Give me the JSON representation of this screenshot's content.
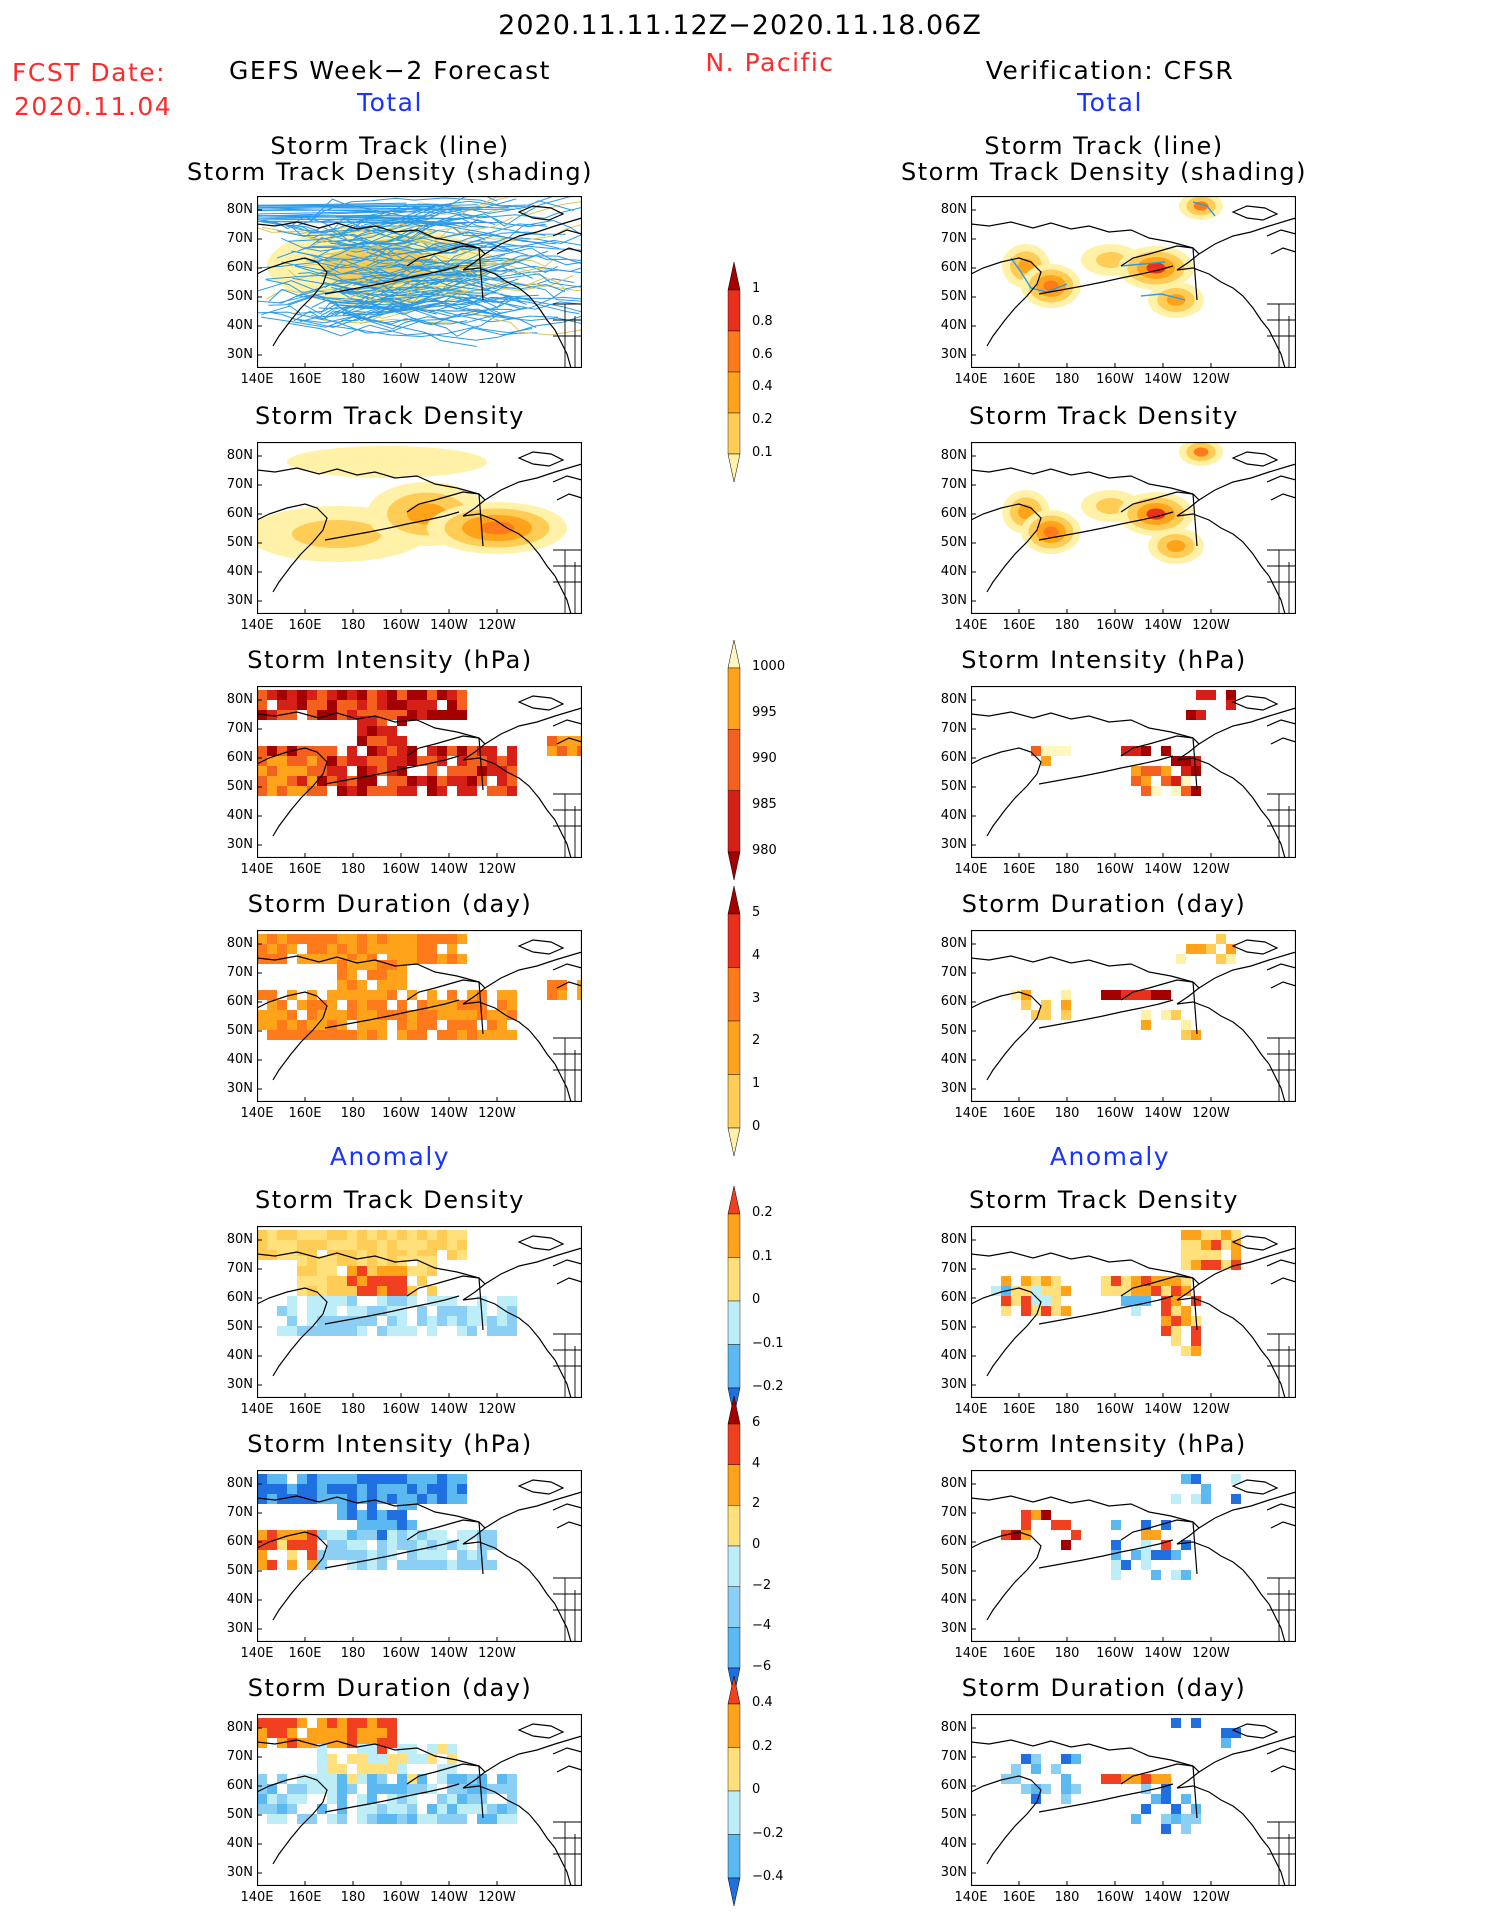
{
  "header": {
    "date_range": "2020.11.11.12Z−2020.11.18.06Z",
    "region": "N. Pacific",
    "fcst_label": "FCST Date:",
    "fcst_date": "2020.11.04",
    "left_title": "GEFS Week−2 Forecast",
    "right_title": "Verification: CFSR",
    "total_label": "Total",
    "anomaly_label": "Anomaly"
  },
  "panel_titles": {
    "track_line": "Storm Track (line)",
    "track_shading": "Storm Track Density (shading)",
    "density": "Storm Track Density",
    "intensity": "Storm Intensity (hPa)",
    "duration": "Storm Duration (day)"
  },
  "map_axes": {
    "lat_labels": [
      "80N",
      "70N",
      "60N",
      "50N",
      "40N",
      "30N"
    ],
    "lon_labels": [
      "140E",
      "160E",
      "180",
      "160W",
      "140W",
      "120W"
    ]
  },
  "colorbars": {
    "density_total": {
      "levels": [
        "1",
        "0.8",
        "0.6",
        "0.4",
        "0.2",
        "0.1"
      ],
      "colors": [
        "#a50000",
        "#e8301c",
        "#ff7a1a",
        "#ffa41a",
        "#ffcc55",
        "#fff2a8"
      ]
    },
    "intensity_total": {
      "levels": [
        "1000",
        "995",
        "990",
        "985",
        "980"
      ],
      "colors": [
        "#fff6c0",
        "#ffa41a",
        "#f4601e",
        "#d42016",
        "#a50000"
      ]
    },
    "duration_total": {
      "levels": [
        "5",
        "4",
        "3",
        "2",
        "1",
        "0"
      ],
      "colors": [
        "#a50000",
        "#e8301c",
        "#ff7a1a",
        "#ffa41a",
        "#ffcc55",
        "#fff2a8"
      ]
    },
    "density_anom": {
      "levels": [
        "0.2",
        "0.1",
        "0",
        "−0.1",
        "−0.2"
      ],
      "colors": [
        "#f04020",
        "#ffa41a",
        "#ffe07a",
        "#bdeef8",
        "#5cb8f0",
        "#1f6fe0"
      ]
    },
    "intensity_anom": {
      "levels": [
        "6",
        "4",
        "2",
        "0",
        "−2",
        "−4",
        "−6"
      ],
      "colors": [
        "#a50000",
        "#f04020",
        "#ffa41a",
        "#ffe07a",
        "#bdeef8",
        "#8ccff4",
        "#5cb8f0",
        "#1f6fe0"
      ]
    },
    "duration_anom": {
      "levels": [
        "0.4",
        "0.2",
        "0",
        "−0.2",
        "−0.4"
      ],
      "colors": [
        "#f04020",
        "#ffa41a",
        "#ffe07a",
        "#bdeef8",
        "#5cb8f0",
        "#1f6fe0"
      ]
    }
  }
}
